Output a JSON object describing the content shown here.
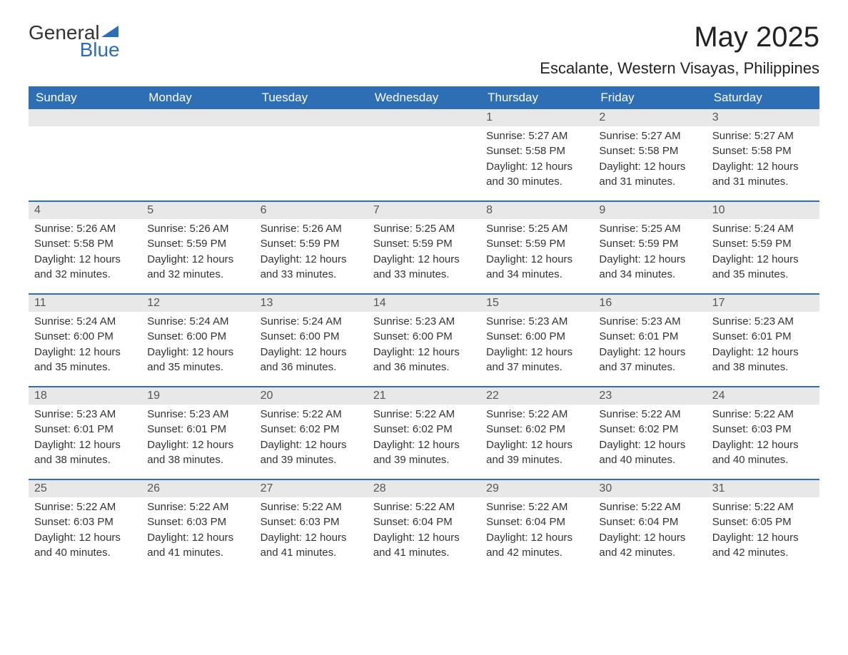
{
  "logo": {
    "text_general": "General",
    "text_blue": "Blue"
  },
  "title": "May 2025",
  "location": "Escalante, Western Visayas, Philippines",
  "colors": {
    "header_bg": "#2d6eb5",
    "header_text": "#ffffff",
    "daynum_bg": "#e8e8e8",
    "border": "#2d6eb5",
    "text": "#333333"
  },
  "day_headers": [
    "Sunday",
    "Monday",
    "Tuesday",
    "Wednesday",
    "Thursday",
    "Friday",
    "Saturday"
  ],
  "weeks": [
    [
      {
        "empty": true
      },
      {
        "empty": true
      },
      {
        "empty": true
      },
      {
        "empty": true
      },
      {
        "day": "1",
        "sunrise": "Sunrise: 5:27 AM",
        "sunset": "Sunset: 5:58 PM",
        "daylight1": "Daylight: 12 hours",
        "daylight2": "and 30 minutes."
      },
      {
        "day": "2",
        "sunrise": "Sunrise: 5:27 AM",
        "sunset": "Sunset: 5:58 PM",
        "daylight1": "Daylight: 12 hours",
        "daylight2": "and 31 minutes."
      },
      {
        "day": "3",
        "sunrise": "Sunrise: 5:27 AM",
        "sunset": "Sunset: 5:58 PM",
        "daylight1": "Daylight: 12 hours",
        "daylight2": "and 31 minutes."
      }
    ],
    [
      {
        "day": "4",
        "sunrise": "Sunrise: 5:26 AM",
        "sunset": "Sunset: 5:58 PM",
        "daylight1": "Daylight: 12 hours",
        "daylight2": "and 32 minutes."
      },
      {
        "day": "5",
        "sunrise": "Sunrise: 5:26 AM",
        "sunset": "Sunset: 5:59 PM",
        "daylight1": "Daylight: 12 hours",
        "daylight2": "and 32 minutes."
      },
      {
        "day": "6",
        "sunrise": "Sunrise: 5:26 AM",
        "sunset": "Sunset: 5:59 PM",
        "daylight1": "Daylight: 12 hours",
        "daylight2": "and 33 minutes."
      },
      {
        "day": "7",
        "sunrise": "Sunrise: 5:25 AM",
        "sunset": "Sunset: 5:59 PM",
        "daylight1": "Daylight: 12 hours",
        "daylight2": "and 33 minutes."
      },
      {
        "day": "8",
        "sunrise": "Sunrise: 5:25 AM",
        "sunset": "Sunset: 5:59 PM",
        "daylight1": "Daylight: 12 hours",
        "daylight2": "and 34 minutes."
      },
      {
        "day": "9",
        "sunrise": "Sunrise: 5:25 AM",
        "sunset": "Sunset: 5:59 PM",
        "daylight1": "Daylight: 12 hours",
        "daylight2": "and 34 minutes."
      },
      {
        "day": "10",
        "sunrise": "Sunrise: 5:24 AM",
        "sunset": "Sunset: 5:59 PM",
        "daylight1": "Daylight: 12 hours",
        "daylight2": "and 35 minutes."
      }
    ],
    [
      {
        "day": "11",
        "sunrise": "Sunrise: 5:24 AM",
        "sunset": "Sunset: 6:00 PM",
        "daylight1": "Daylight: 12 hours",
        "daylight2": "and 35 minutes."
      },
      {
        "day": "12",
        "sunrise": "Sunrise: 5:24 AM",
        "sunset": "Sunset: 6:00 PM",
        "daylight1": "Daylight: 12 hours",
        "daylight2": "and 35 minutes."
      },
      {
        "day": "13",
        "sunrise": "Sunrise: 5:24 AM",
        "sunset": "Sunset: 6:00 PM",
        "daylight1": "Daylight: 12 hours",
        "daylight2": "and 36 minutes."
      },
      {
        "day": "14",
        "sunrise": "Sunrise: 5:23 AM",
        "sunset": "Sunset: 6:00 PM",
        "daylight1": "Daylight: 12 hours",
        "daylight2": "and 36 minutes."
      },
      {
        "day": "15",
        "sunrise": "Sunrise: 5:23 AM",
        "sunset": "Sunset: 6:00 PM",
        "daylight1": "Daylight: 12 hours",
        "daylight2": "and 37 minutes."
      },
      {
        "day": "16",
        "sunrise": "Sunrise: 5:23 AM",
        "sunset": "Sunset: 6:01 PM",
        "daylight1": "Daylight: 12 hours",
        "daylight2": "and 37 minutes."
      },
      {
        "day": "17",
        "sunrise": "Sunrise: 5:23 AM",
        "sunset": "Sunset: 6:01 PM",
        "daylight1": "Daylight: 12 hours",
        "daylight2": "and 38 minutes."
      }
    ],
    [
      {
        "day": "18",
        "sunrise": "Sunrise: 5:23 AM",
        "sunset": "Sunset: 6:01 PM",
        "daylight1": "Daylight: 12 hours",
        "daylight2": "and 38 minutes."
      },
      {
        "day": "19",
        "sunrise": "Sunrise: 5:23 AM",
        "sunset": "Sunset: 6:01 PM",
        "daylight1": "Daylight: 12 hours",
        "daylight2": "and 38 minutes."
      },
      {
        "day": "20",
        "sunrise": "Sunrise: 5:22 AM",
        "sunset": "Sunset: 6:02 PM",
        "daylight1": "Daylight: 12 hours",
        "daylight2": "and 39 minutes."
      },
      {
        "day": "21",
        "sunrise": "Sunrise: 5:22 AM",
        "sunset": "Sunset: 6:02 PM",
        "daylight1": "Daylight: 12 hours",
        "daylight2": "and 39 minutes."
      },
      {
        "day": "22",
        "sunrise": "Sunrise: 5:22 AM",
        "sunset": "Sunset: 6:02 PM",
        "daylight1": "Daylight: 12 hours",
        "daylight2": "and 39 minutes."
      },
      {
        "day": "23",
        "sunrise": "Sunrise: 5:22 AM",
        "sunset": "Sunset: 6:02 PM",
        "daylight1": "Daylight: 12 hours",
        "daylight2": "and 40 minutes."
      },
      {
        "day": "24",
        "sunrise": "Sunrise: 5:22 AM",
        "sunset": "Sunset: 6:03 PM",
        "daylight1": "Daylight: 12 hours",
        "daylight2": "and 40 minutes."
      }
    ],
    [
      {
        "day": "25",
        "sunrise": "Sunrise: 5:22 AM",
        "sunset": "Sunset: 6:03 PM",
        "daylight1": "Daylight: 12 hours",
        "daylight2": "and 40 minutes."
      },
      {
        "day": "26",
        "sunrise": "Sunrise: 5:22 AM",
        "sunset": "Sunset: 6:03 PM",
        "daylight1": "Daylight: 12 hours",
        "daylight2": "and 41 minutes."
      },
      {
        "day": "27",
        "sunrise": "Sunrise: 5:22 AM",
        "sunset": "Sunset: 6:03 PM",
        "daylight1": "Daylight: 12 hours",
        "daylight2": "and 41 minutes."
      },
      {
        "day": "28",
        "sunrise": "Sunrise: 5:22 AM",
        "sunset": "Sunset: 6:04 PM",
        "daylight1": "Daylight: 12 hours",
        "daylight2": "and 41 minutes."
      },
      {
        "day": "29",
        "sunrise": "Sunrise: 5:22 AM",
        "sunset": "Sunset: 6:04 PM",
        "daylight1": "Daylight: 12 hours",
        "daylight2": "and 42 minutes."
      },
      {
        "day": "30",
        "sunrise": "Sunrise: 5:22 AM",
        "sunset": "Sunset: 6:04 PM",
        "daylight1": "Daylight: 12 hours",
        "daylight2": "and 42 minutes."
      },
      {
        "day": "31",
        "sunrise": "Sunrise: 5:22 AM",
        "sunset": "Sunset: 6:05 PM",
        "daylight1": "Daylight: 12 hours",
        "daylight2": "and 42 minutes."
      }
    ]
  ]
}
